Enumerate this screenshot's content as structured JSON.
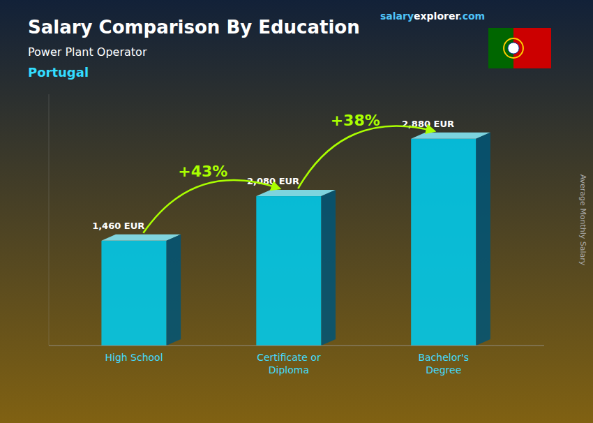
{
  "chart_data": {
    "type": "bar",
    "title": "Salary Comparison By Education",
    "subtitle": "Power Plant Operator",
    "country": "Portugal",
    "watermark": [
      "salary",
      "explorer",
      ".com"
    ],
    "ylabel": "Average Monthly Salary",
    "categories": [
      "High School",
      "Certificate or\nDiploma",
      "Bachelor's\nDegree"
    ],
    "values": [
      1460,
      2080,
      2880
    ],
    "value_labels": [
      "1,460 EUR",
      "2,080 EUR",
      "2,880 EUR"
    ],
    "data_labels": true,
    "change_labels": [
      "+43%",
      "+38%"
    ],
    "color": "#00ccee",
    "ylim": [
      0,
      3500
    ],
    "tick_labels": "x",
    "grid": false
  }
}
